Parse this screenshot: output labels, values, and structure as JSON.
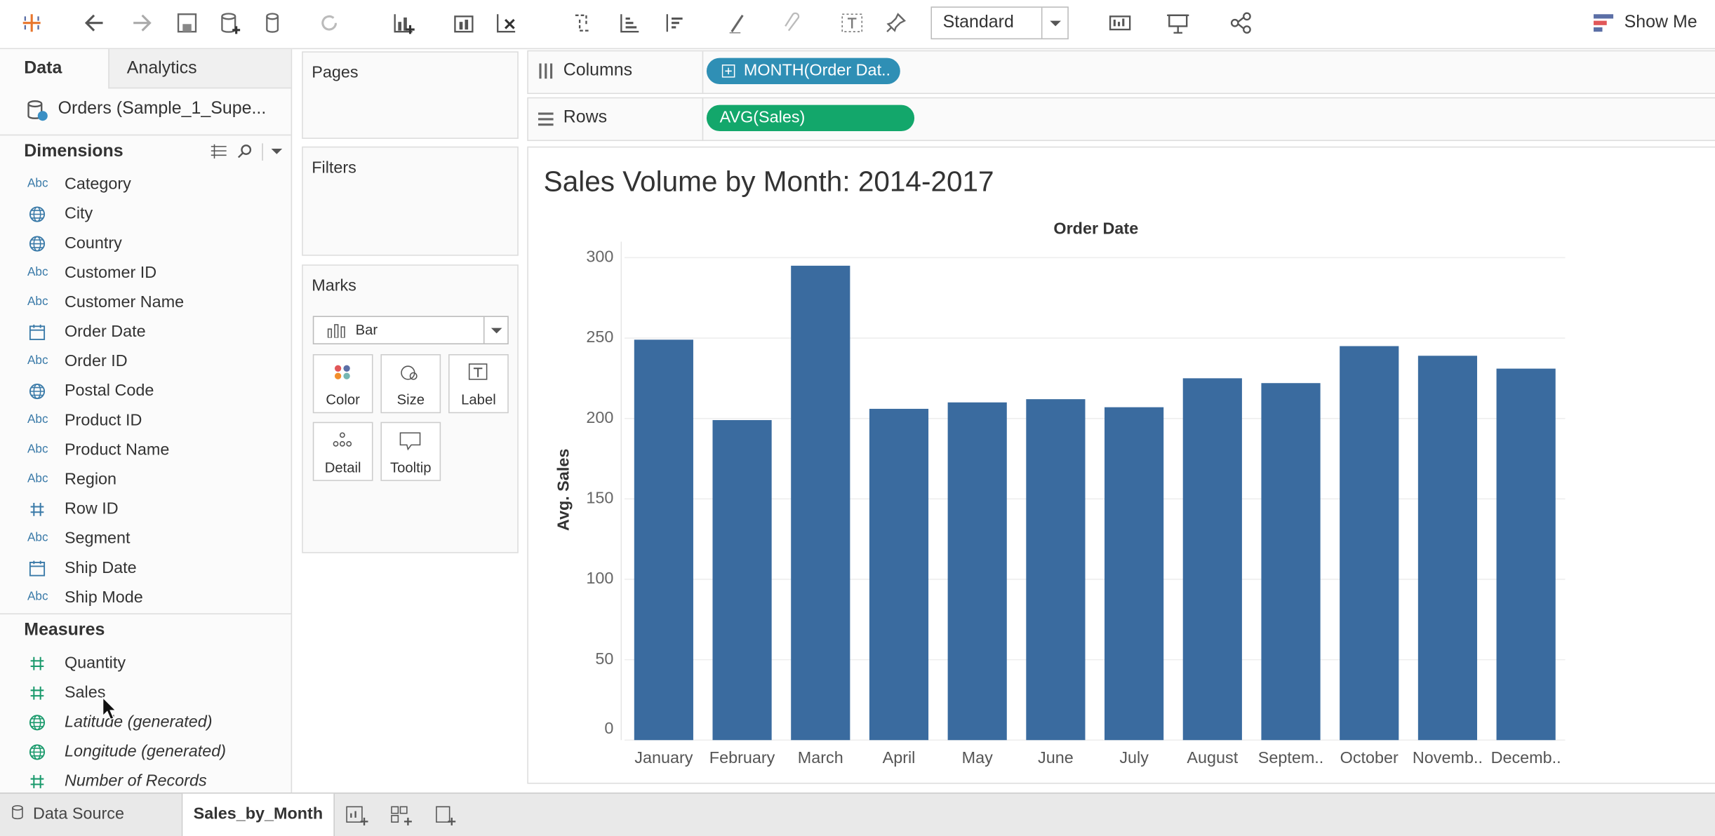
{
  "toolbar": {
    "fit": "Standard",
    "show_me": "Show Me"
  },
  "sidebar": {
    "tabs": [
      "Data",
      "Analytics"
    ],
    "datasource": "Orders (Sample_1_Supe...",
    "dimensions_title": "Dimensions",
    "dimensions": [
      {
        "icon": "Abc",
        "name": "Category"
      },
      {
        "name": "City"
      },
      {
        "name": "Country"
      },
      {
        "icon": "Abc",
        "name": "Customer ID"
      },
      {
        "icon": "Abc",
        "name": "Customer Name"
      },
      {
        "name": "Order Date"
      },
      {
        "icon": "Abc",
        "name": "Order ID"
      },
      {
        "name": "Postal Code"
      },
      {
        "icon": "Abc",
        "name": "Product ID"
      },
      {
        "icon": "Abc",
        "name": "Product Name"
      },
      {
        "icon": "Abc",
        "name": "Region"
      },
      {
        "name": "Row ID"
      },
      {
        "icon": "Abc",
        "name": "Segment"
      },
      {
        "name": "Ship Date"
      },
      {
        "icon": "Abc",
        "name": "Ship Mode"
      }
    ],
    "measures_title": "Measures",
    "measures": [
      "Quantity",
      "Sales",
      "Latitude (generated)",
      "Longitude (generated)",
      "Number of Records"
    ]
  },
  "cards": {
    "pages": "Pages",
    "filters": "Filters",
    "marks": "Marks",
    "mark_type": "Bar",
    "buttons": [
      "Color",
      "Size",
      "Label",
      "Detail",
      "Tooltip"
    ]
  },
  "shelves": {
    "columns_label": "Columns",
    "columns_pill": "MONTH(Order Dat..",
    "rows_label": "Rows",
    "rows_pill": "AVG(Sales)"
  },
  "tabs": {
    "data_source": "Data Source",
    "sheet": "Sales_by_Month"
  },
  "chart_data": {
    "type": "bar",
    "title": "Sales Volume by Month: 2014-2017",
    "x_label": "Order Date",
    "y_label": "Avg. Sales",
    "categories": [
      "January",
      "February",
      "March",
      "April",
      "May",
      "June",
      "July",
      "August",
      "Septem..",
      "October",
      "Novemb..",
      "Decemb.."
    ],
    "values": [
      249,
      199,
      295,
      206,
      210,
      212,
      207,
      225,
      222,
      245,
      239,
      231
    ],
    "color": "#3a6b9f",
    "ylim": [
      0,
      310
    ],
    "yticks": [
      0,
      50,
      100,
      150,
      200,
      250,
      300
    ],
    "grid": true
  }
}
